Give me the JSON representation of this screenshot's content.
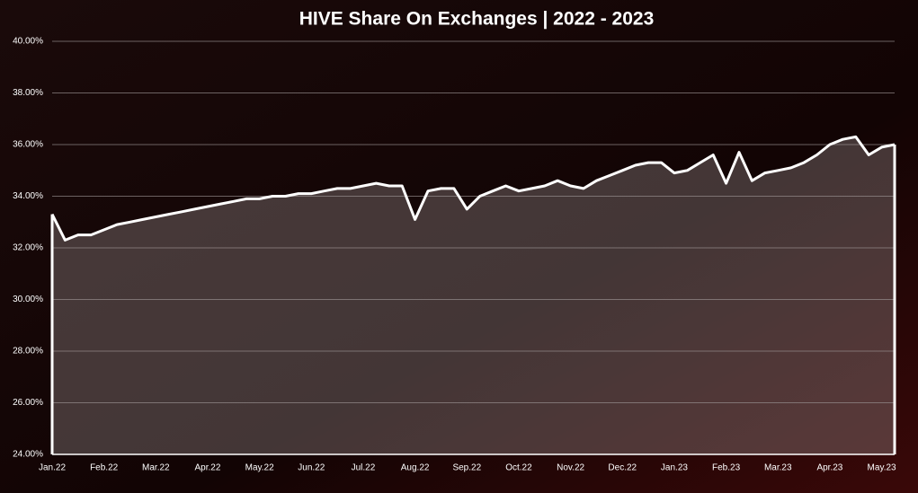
{
  "chart_data": {
    "type": "area",
    "title": "HIVE Share On Exchanges | 2022 - 2023",
    "categories": [
      "Jan.22",
      null,
      null,
      null,
      "Feb.22",
      null,
      null,
      null,
      "Mar.22",
      null,
      null,
      null,
      "Apr.22",
      null,
      null,
      null,
      "May.22",
      null,
      null,
      null,
      "Jun.22",
      null,
      null,
      null,
      "Jul.22",
      null,
      null,
      null,
      "Aug.22",
      null,
      null,
      null,
      "Sep.22",
      null,
      null,
      null,
      "Oct.22",
      null,
      null,
      null,
      "Nov.22",
      null,
      null,
      null,
      "Dec.22",
      null,
      null,
      null,
      "Jan.23",
      null,
      null,
      null,
      "Feb.23",
      null,
      null,
      null,
      "Mar.23",
      null,
      null,
      null,
      "Apr.23",
      null,
      null,
      null,
      "May.23",
      null
    ],
    "values": [
      33.3,
      32.3,
      32.5,
      32.5,
      32.7,
      32.9,
      33.0,
      33.1,
      33.2,
      33.3,
      33.4,
      33.5,
      33.6,
      33.7,
      33.8,
      33.9,
      33.9,
      34.0,
      34.0,
      34.1,
      34.1,
      34.2,
      34.3,
      34.3,
      34.4,
      34.5,
      34.4,
      34.4,
      33.1,
      34.2,
      34.3,
      34.3,
      33.5,
      34.0,
      34.2,
      34.4,
      34.2,
      34.3,
      34.4,
      34.6,
      34.4,
      34.3,
      34.6,
      34.8,
      35.0,
      35.2,
      35.3,
      35.3,
      34.9,
      35.0,
      35.3,
      35.6,
      34.5,
      35.7,
      34.6,
      34.9,
      35.0,
      35.1,
      35.3,
      35.6,
      36.0,
      36.2,
      36.3,
      35.6,
      35.9,
      36.0
    ],
    "color": "#ffffff",
    "ylim": [
      24,
      40
    ],
    "yticks": [
      {
        "value": 24,
        "label": "24.00%"
      },
      {
        "value": 26,
        "label": "26.00%"
      },
      {
        "value": 28,
        "label": "28.00%"
      },
      {
        "value": 30,
        "label": "30.00%"
      },
      {
        "value": 32,
        "label": "32.00%"
      },
      {
        "value": 34,
        "label": "34.00%"
      },
      {
        "value": 36,
        "label": "36.00%"
      },
      {
        "value": 38,
        "label": "38.00%"
      },
      {
        "value": 40,
        "label": "40.00%"
      }
    ],
    "grid": true
  }
}
